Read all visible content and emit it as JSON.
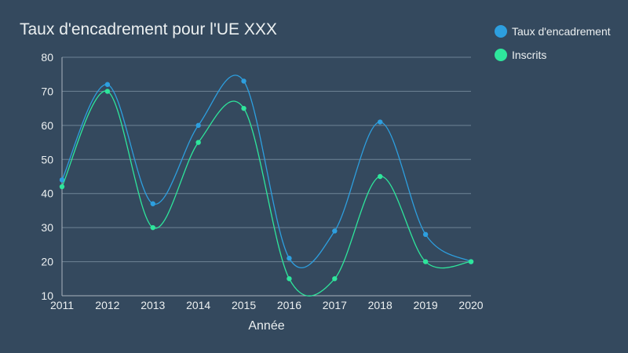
{
  "chart_data": {
    "type": "line",
    "title": "Taux d'encadrement pour l'UE XXX",
    "xlabel": "Année",
    "ylabel": "",
    "x": [
      "2011",
      "2012",
      "2013",
      "2014",
      "2015",
      "2016",
      "2017",
      "2018",
      "2019",
      "2020"
    ],
    "ylim": [
      10,
      80
    ],
    "yticks": [
      10,
      20,
      30,
      40,
      50,
      60,
      70,
      80
    ],
    "grid": true,
    "legend_position": "top-right",
    "smooth": true,
    "series": [
      {
        "name": "Taux d'encadrement",
        "color": "#2d9fdf",
        "values": [
          44,
          72,
          37,
          60,
          73,
          21,
          29,
          61,
          28,
          20
        ]
      },
      {
        "name": "Inscrits",
        "color": "#2ee69c",
        "values": [
          42,
          70,
          30,
          55,
          65,
          15,
          15,
          45,
          20,
          20
        ]
      }
    ]
  }
}
